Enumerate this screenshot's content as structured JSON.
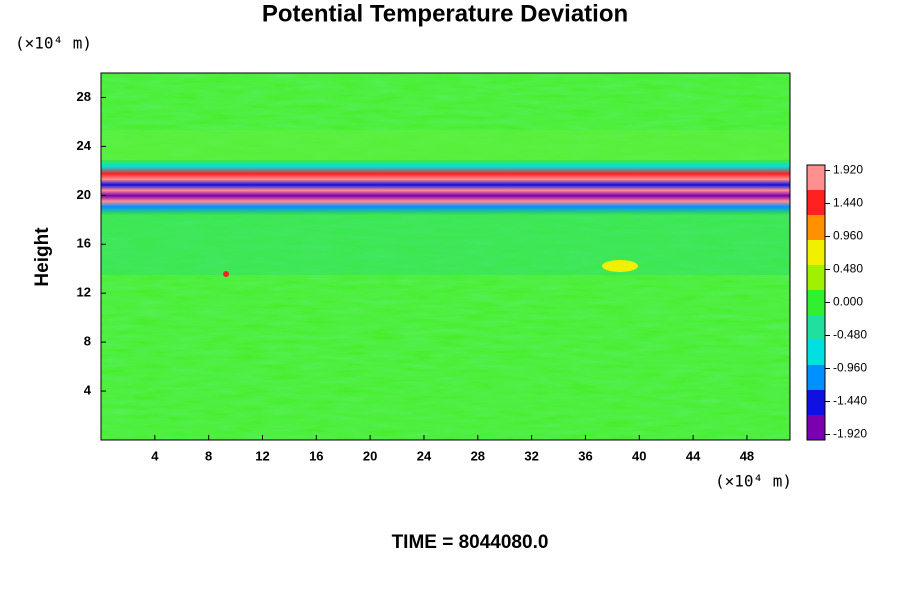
{
  "chart_data": {
    "type": "heatmap",
    "title": "Potential Temperature Deviation",
    "y_label": "Height",
    "x_unit": "(×10⁴ m)",
    "y_unit": "(×10⁴ m)",
    "footer": "TIME = 8044080.0",
    "xlim": [
      0,
      51.2
    ],
    "xticks": [
      4,
      8,
      12,
      16,
      20,
      24,
      28,
      32,
      36,
      40,
      44,
      48
    ],
    "ylim": [
      0,
      30
    ],
    "yticks": [
      4,
      8,
      12,
      16,
      20,
      24,
      28
    ],
    "clim": [
      -2,
      2
    ],
    "cticks": [
      {
        "value": -1.92,
        "label": "-1.920"
      },
      {
        "value": -1.44,
        "label": "-1.440"
      },
      {
        "value": -0.96,
        "label": "-0.960"
      },
      {
        "value": -0.48,
        "label": "-0.480"
      },
      {
        "value": 0,
        "label": "0.000"
      },
      {
        "value": 0.48,
        "label": "0.480"
      },
      {
        "value": 0.96,
        "label": "0.960"
      },
      {
        "value": 1.44,
        "label": "1.440"
      },
      {
        "value": 1.92,
        "label": "1.920"
      }
    ],
    "colormap": [
      "#7a00b0",
      "#1010e0",
      "#0090ff",
      "#00e0e0",
      "#20e0a0",
      "#30f030",
      "#a0f000",
      "#f0f000",
      "#ff9000",
      "#ff2020",
      "#ff9090"
    ]
  }
}
